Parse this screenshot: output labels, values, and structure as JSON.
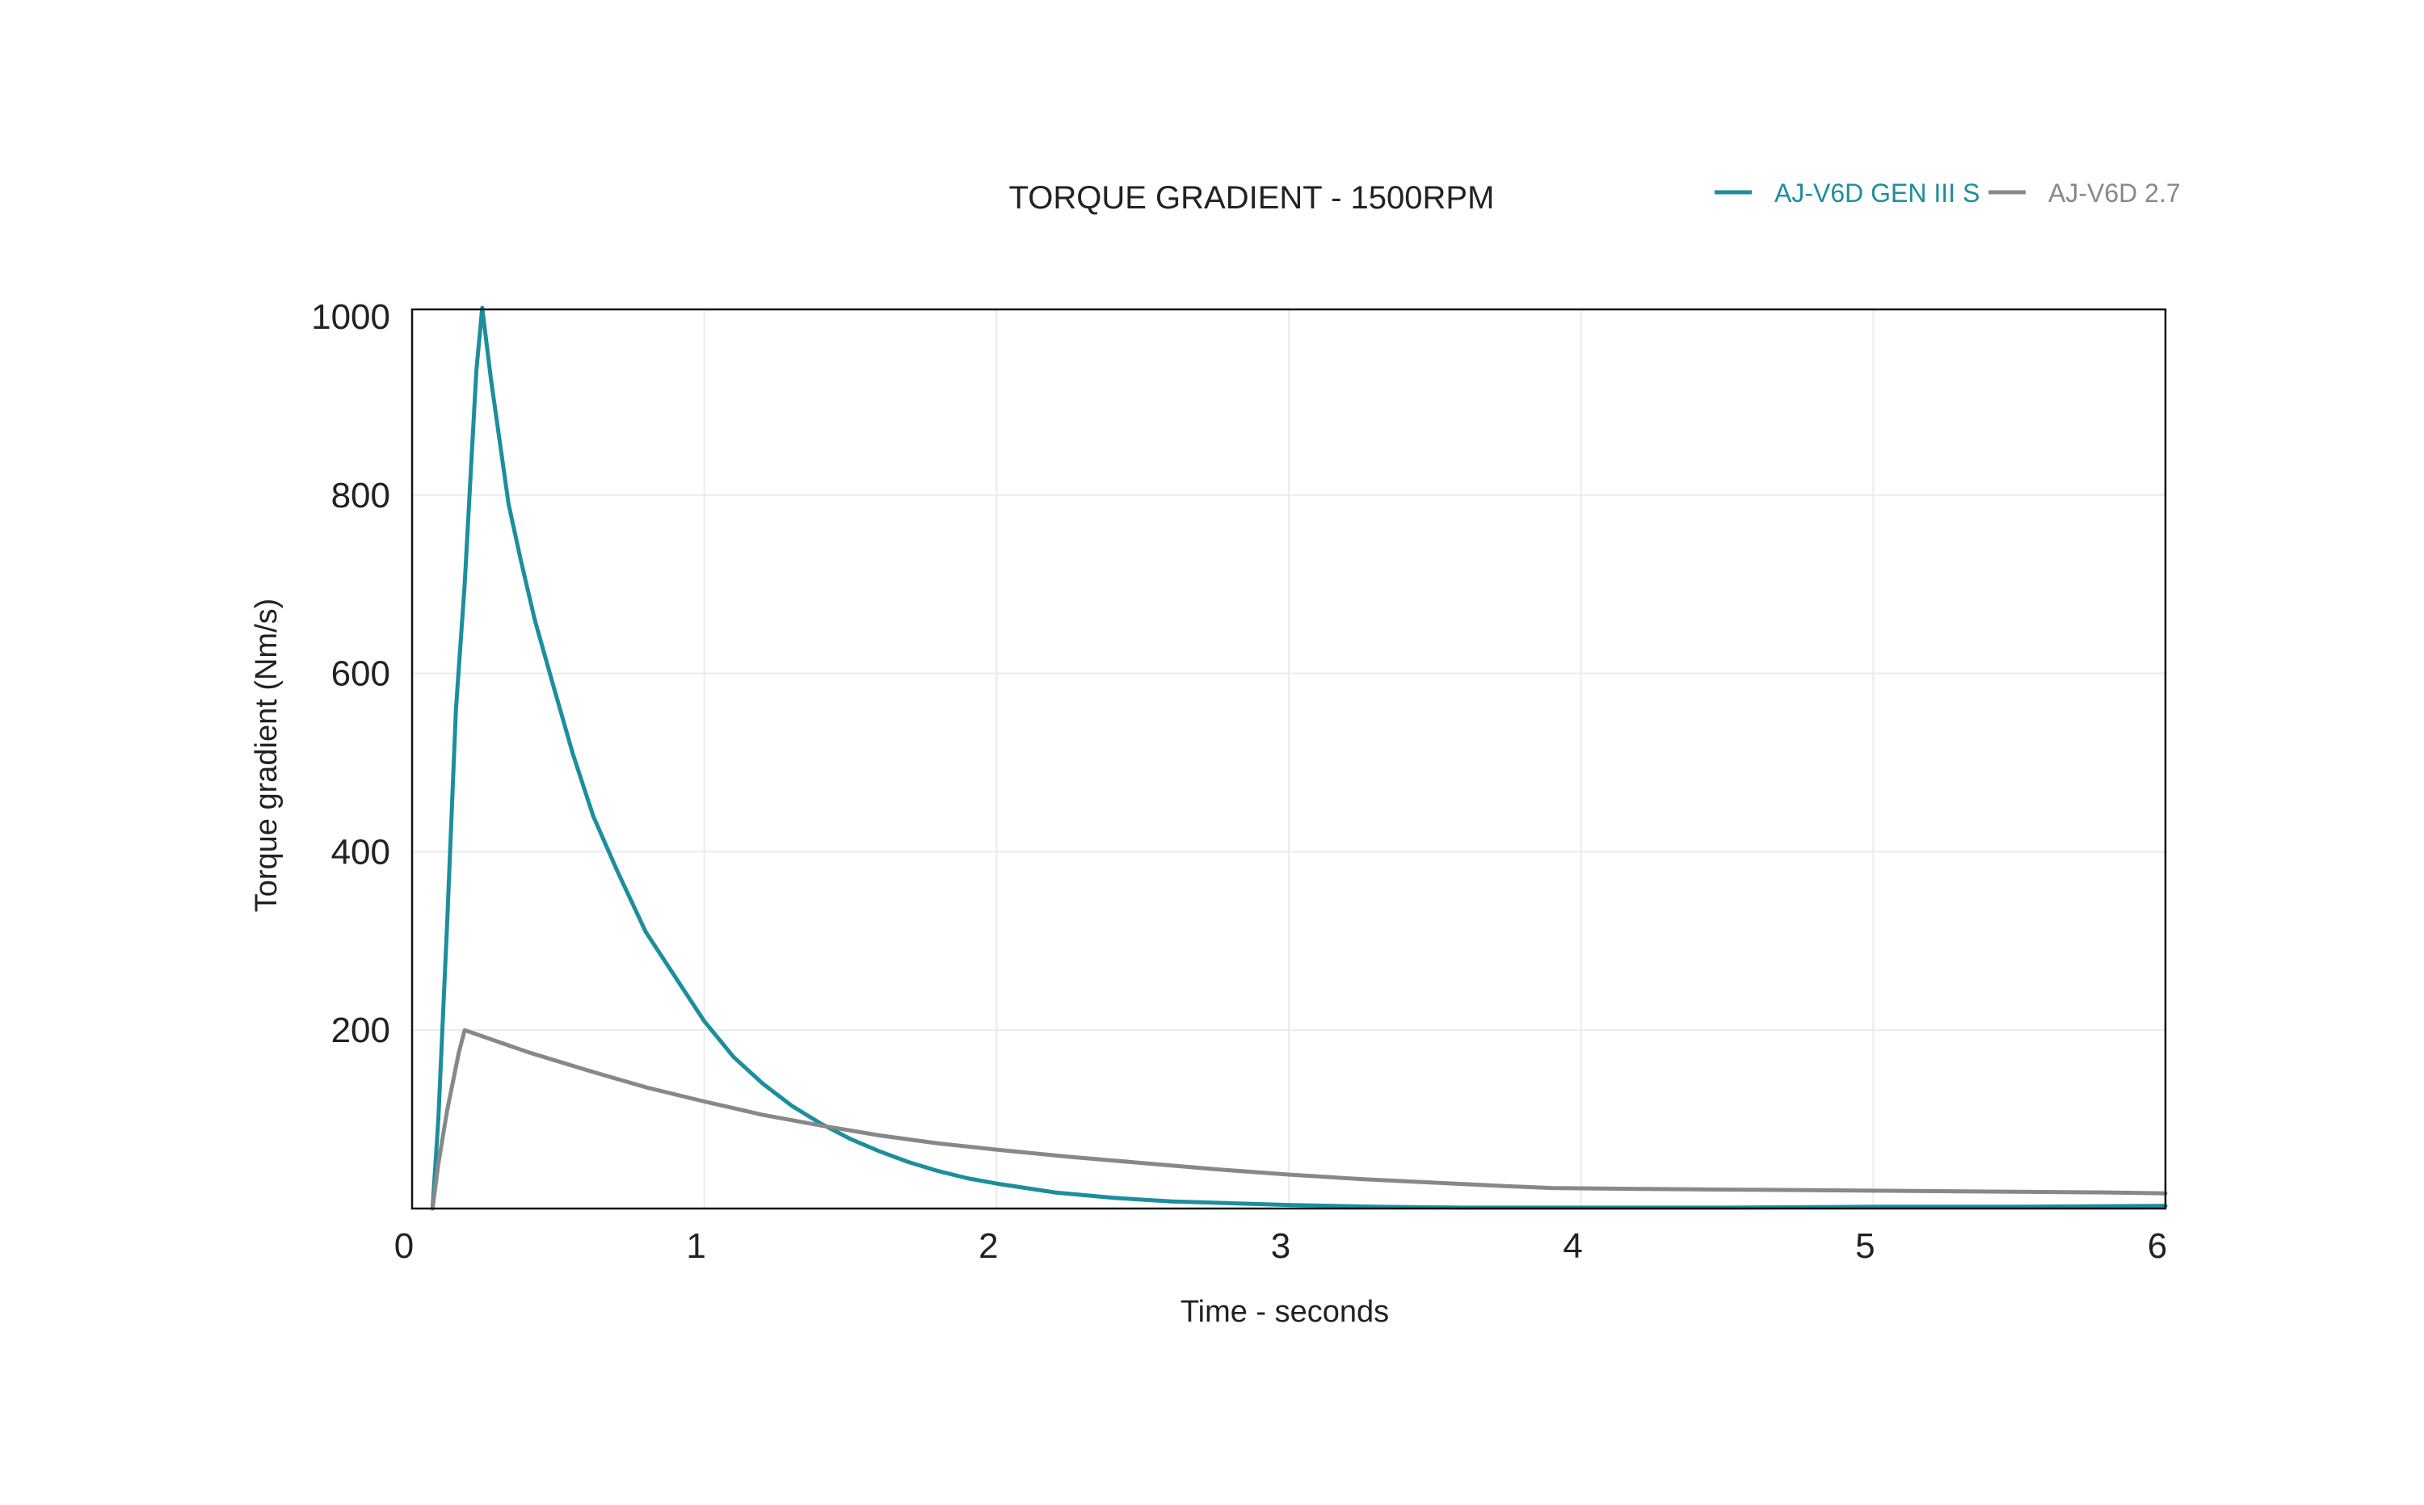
{
  "chart_data": {
    "type": "line",
    "title": "TORQUE GRADIENT - 1500RPM",
    "xlabel": "Time - seconds",
    "ylabel": "Torque gradient (Nm/s)",
    "xlim": [
      0,
      6
    ],
    "ylim": [
      0,
      1000
    ],
    "x_ticks": [
      0,
      1,
      2,
      3,
      4,
      5,
      6
    ],
    "y_ticks": [
      200,
      400,
      600,
      800,
      1000
    ],
    "grid": true,
    "legend_position": "top-right",
    "series": [
      {
        "name": "AJ-V6D GEN III S",
        "color": "#1c8e9e",
        "x": [
          0.07,
          0.09,
          0.12,
          0.15,
          0.18,
          0.2,
          0.22,
          0.24,
          0.27,
          0.3,
          0.33,
          0.37,
          0.42,
          0.48,
          0.55,
          0.62,
          0.7,
          0.8,
          0.9,
          1.0,
          1.1,
          1.2,
          1.3,
          1.4,
          1.5,
          1.6,
          1.7,
          1.8,
          1.9,
          2.0,
          2.2,
          2.4,
          2.6,
          2.8,
          3.0,
          3.3,
          3.6,
          4.0,
          4.5,
          5.0,
          5.5,
          6.0
        ],
        "y": [
          0,
          100,
          320,
          560,
          700,
          820,
          940,
          1010,
          930,
          860,
          790,
          730,
          660,
          590,
          510,
          440,
          380,
          310,
          260,
          210,
          170,
          140,
          115,
          95,
          78,
          64,
          52,
          42,
          34,
          28,
          18,
          12,
          8,
          6,
          4,
          2,
          1,
          1,
          1,
          2,
          2,
          3
        ]
      },
      {
        "name": "AJ-V6D 2.7",
        "color": "#888888",
        "x": [
          0.07,
          0.09,
          0.12,
          0.16,
          0.18,
          0.25,
          0.4,
          0.6,
          0.8,
          1.0,
          1.2,
          1.4,
          1.6,
          1.8,
          2.0,
          2.25,
          2.5,
          2.75,
          3.0,
          3.25,
          3.5,
          3.75,
          3.9,
          4.2,
          4.6,
          5.0,
          5.4,
          5.8,
          6.0
        ],
        "y": [
          0,
          50,
          110,
          175,
          200,
          192,
          175,
          155,
          136,
          120,
          105,
          93,
          82,
          73,
          66,
          58,
          51,
          44,
          38,
          33,
          29,
          25,
          23,
          22,
          21,
          20,
          19,
          18,
          17
        ]
      }
    ]
  }
}
